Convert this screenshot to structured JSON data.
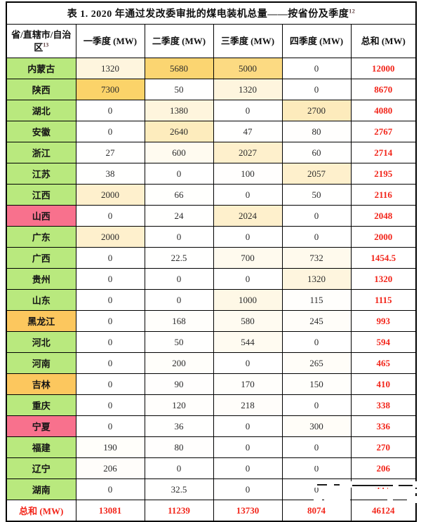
{
  "title": {
    "text": "表 1. 2020 年通过发改委审批的煤电装机总量——按省份及季度",
    "footnote": "12"
  },
  "header": {
    "province": "省/直辖市/自治区",
    "province_footnote": "13",
    "q1": "一季度 (MW)",
    "q2": "二季度 (MW)",
    "q3": "三季度 (MW)",
    "q4": "四季度 (MW)",
    "total": "总和 (MW)"
  },
  "heat": {
    "scale_max": 6000,
    "max_color": "#fbd369"
  },
  "colors": {
    "label_green": "#b9e97e",
    "label_pink": "#f8718d",
    "label_amber": "#fcc75e",
    "cell_heat_max": "#fbd369",
    "red_text": "#f2251a",
    "border": "#000000"
  },
  "rows": [
    {
      "province": "内蒙古",
      "tone": "green",
      "q1": "1320",
      "q2": "5680",
      "q3": "5000",
      "q4": "0",
      "total": "12000"
    },
    {
      "province": "陕西",
      "tone": "green",
      "q1": "7300",
      "q2": "50",
      "q3": "1320",
      "q4": "0",
      "total": "8670"
    },
    {
      "province": "湖北",
      "tone": "green",
      "q1": "0",
      "q2": "1380",
      "q3": "0",
      "q4": "2700",
      "total": "4080"
    },
    {
      "province": "安徽",
      "tone": "green",
      "q1": "0",
      "q2": "2640",
      "q3": "47",
      "q4": "80",
      "total": "2767"
    },
    {
      "province": "浙江",
      "tone": "green",
      "q1": "27",
      "q2": "600",
      "q3": "2027",
      "q4": "60",
      "total": "2714"
    },
    {
      "province": "江苏",
      "tone": "green",
      "q1": "38",
      "q2": "0",
      "q3": "100",
      "q4": "2057",
      "total": "2195"
    },
    {
      "province": "江西",
      "tone": "green",
      "q1": "2000",
      "q2": "66",
      "q3": "0",
      "q4": "50",
      "total": "2116"
    },
    {
      "province": "山西",
      "tone": "pink",
      "q1": "0",
      "q2": "24",
      "q3": "2024",
      "q4": "0",
      "total": "2048"
    },
    {
      "province": "广东",
      "tone": "green",
      "q1": "2000",
      "q2": "0",
      "q3": "0",
      "q4": "0",
      "total": "2000"
    },
    {
      "province": "广西",
      "tone": "green",
      "q1": "0",
      "q2": "22.5",
      "q3": "700",
      "q4": "732",
      "total": "1454.5"
    },
    {
      "province": "贵州",
      "tone": "green",
      "q1": "0",
      "q2": "0",
      "q3": "0",
      "q4": "1320",
      "total": "1320"
    },
    {
      "province": "山东",
      "tone": "green",
      "q1": "0",
      "q2": "0",
      "q3": "1000",
      "q4": "115",
      "total": "1115"
    },
    {
      "province": "黑龙江",
      "tone": "amber",
      "q1": "0",
      "q2": "168",
      "q3": "580",
      "q4": "245",
      "total": "993"
    },
    {
      "province": "河北",
      "tone": "green",
      "q1": "0",
      "q2": "50",
      "q3": "544",
      "q4": "0",
      "total": "594"
    },
    {
      "province": "河南",
      "tone": "green",
      "q1": "0",
      "q2": "200",
      "q3": "0",
      "q4": "265",
      "total": "465"
    },
    {
      "province": "吉林",
      "tone": "amber",
      "q1": "0",
      "q2": "90",
      "q3": "170",
      "q4": "150",
      "total": "410"
    },
    {
      "province": "重庆",
      "tone": "green",
      "q1": "0",
      "q2": "120",
      "q3": "218",
      "q4": "0",
      "total": "338"
    },
    {
      "province": "宁夏",
      "tone": "pink",
      "q1": "0",
      "q2": "36",
      "q3": "0",
      "q4": "300",
      "total": "336"
    },
    {
      "province": "福建",
      "tone": "green",
      "q1": "190",
      "q2": "80",
      "q3": "0",
      "q4": "0",
      "total": "270"
    },
    {
      "province": "辽宁",
      "tone": "green",
      "q1": "206",
      "q2": "0",
      "q3": "0",
      "q4": "0",
      "total": "206"
    },
    {
      "province": "湖南",
      "tone": "green",
      "q1": "0",
      "q2": "32.5",
      "q3": "0",
      "q4": "0",
      "total": "32.5"
    }
  ],
  "totals": {
    "label": "总和 (MW)",
    "q1": "13081",
    "q2": "11239",
    "q3": "13730",
    "q4": "8074",
    "total": "46124"
  },
  "chart_data": {
    "type": "table",
    "title": "表 1. 2020 年通过发改委审批的煤电装机总量——按省份及季度",
    "columns": [
      "省/直辖市/自治区",
      "一季度 (MW)",
      "二季度 (MW)",
      "三季度 (MW)",
      "四季度 (MW)",
      "总和 (MW)"
    ],
    "column_totals": [
      13081,
      11239,
      13730,
      8074,
      46124
    ]
  }
}
